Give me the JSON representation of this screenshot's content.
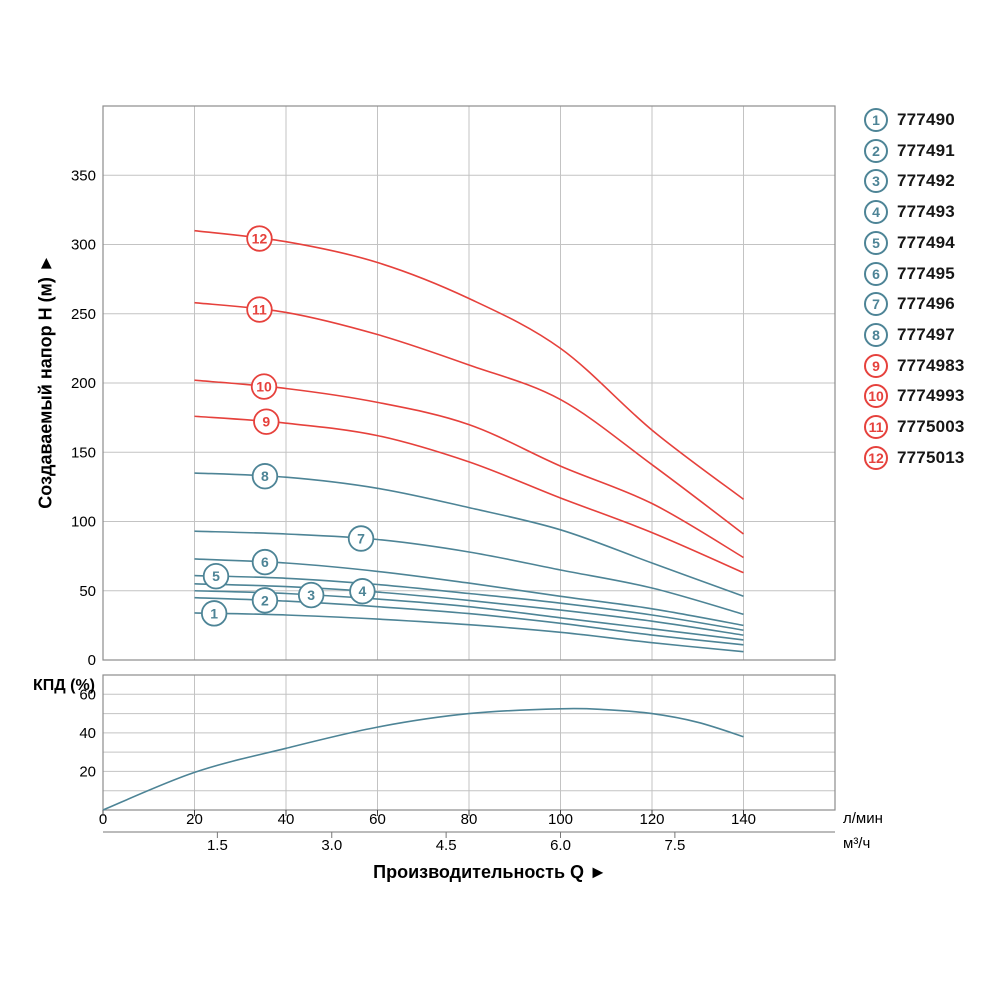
{
  "page": {
    "background": "#ffffff"
  },
  "colors": {
    "blue": "#4d8496",
    "red": "#e6413c",
    "grid": "#c3c3c3",
    "border": "#8d8d8d",
    "tick": "#444444",
    "text": "#000000"
  },
  "legend": {
    "items": [
      {
        "num": "1",
        "model": "777490",
        "color": "blue"
      },
      {
        "num": "2",
        "model": "777491",
        "color": "blue"
      },
      {
        "num": "3",
        "model": "777492",
        "color": "blue"
      },
      {
        "num": "4",
        "model": "777493",
        "color": "blue"
      },
      {
        "num": "5",
        "model": "777494",
        "color": "blue"
      },
      {
        "num": "6",
        "model": "777495",
        "color": "blue"
      },
      {
        "num": "7",
        "model": "777496",
        "color": "blue"
      },
      {
        "num": "8",
        "model": "777497",
        "color": "blue"
      },
      {
        "num": "9",
        "model": "7774983",
        "color": "red"
      },
      {
        "num": "10",
        "model": "7774993",
        "color": "red"
      },
      {
        "num": "11",
        "model": "7775003",
        "color": "red"
      },
      {
        "num": "12",
        "model": "7775013",
        "color": "red"
      }
    ]
  },
  "chart_data": {
    "type": "line",
    "title": "",
    "x_axis": {
      "label": "Производительность Q ►",
      "unit_primary": "л/мин",
      "unit_secondary": "м³/ч",
      "range_lmin": [
        0,
        160
      ],
      "ticks_lmin": [
        0,
        20,
        40,
        60,
        80,
        100,
        120,
        140
      ],
      "ticks_m3h": [
        {
          "label": "1.5",
          "q": 25
        },
        {
          "label": "3.0",
          "q": 50
        },
        {
          "label": "4.5",
          "q": 75
        },
        {
          "label": "6.0",
          "q": 100
        },
        {
          "label": "7.5",
          "q": 125
        }
      ],
      "grid_step": 20
    },
    "y_axis_main": {
      "label": "Создаваемый напор H (м) ►",
      "range": [
        0,
        400
      ],
      "ticks": [
        0,
        50,
        100,
        150,
        200,
        250,
        300,
        350
      ],
      "grid_step": 50
    },
    "y_axis_eff": {
      "label": "КПД (%)",
      "range": [
        0,
        70
      ],
      "ticks": [
        20,
        40,
        60
      ],
      "grid_step": 10
    },
    "series": [
      {
        "num": "1",
        "model": "777490",
        "color": "blue",
        "label_q": 24.3,
        "points": [
          [
            20,
            34
          ],
          [
            40,
            32.5
          ],
          [
            60,
            29.5
          ],
          [
            80,
            25.5
          ],
          [
            100,
            20
          ],
          [
            120,
            12.5
          ],
          [
            140,
            6
          ]
        ]
      },
      {
        "num": "2",
        "model": "777491",
        "color": "blue",
        "label_q": 35.4,
        "points": [
          [
            20,
            45
          ],
          [
            40,
            42.5
          ],
          [
            60,
            38.5
          ],
          [
            80,
            33.5
          ],
          [
            100,
            26.5
          ],
          [
            120,
            18
          ],
          [
            140,
            11
          ]
        ]
      },
      {
        "num": "3",
        "model": "777492",
        "color": "blue",
        "label_q": 45.5,
        "points": [
          [
            20,
            50
          ],
          [
            40,
            48
          ],
          [
            60,
            44
          ],
          [
            80,
            38.5
          ],
          [
            100,
            30.5
          ],
          [
            120,
            22.5
          ],
          [
            140,
            14.5
          ]
        ]
      },
      {
        "num": "4",
        "model": "777493",
        "color": "blue",
        "label_q": 56.7,
        "points": [
          [
            20,
            55
          ],
          [
            40,
            53
          ],
          [
            60,
            49
          ],
          [
            80,
            43
          ],
          [
            100,
            36
          ],
          [
            120,
            28
          ],
          [
            140,
            18
          ]
        ]
      },
      {
        "num": "5",
        "model": "777494",
        "color": "blue",
        "label_q": 24.7,
        "points": [
          [
            20,
            61
          ],
          [
            40,
            59
          ],
          [
            60,
            54.5
          ],
          [
            80,
            48
          ],
          [
            100,
            41
          ],
          [
            120,
            32.5
          ],
          [
            140,
            21.5
          ]
        ]
      },
      {
        "num": "6",
        "model": "777495",
        "color": "blue",
        "label_q": 35.4,
        "points": [
          [
            20,
            73
          ],
          [
            40,
            70
          ],
          [
            60,
            64
          ],
          [
            80,
            55.5
          ],
          [
            100,
            46
          ],
          [
            120,
            37
          ],
          [
            140,
            25
          ]
        ]
      },
      {
        "num": "7",
        "model": "777496",
        "color": "blue",
        "label_q": 56.4,
        "points": [
          [
            20,
            93
          ],
          [
            40,
            91
          ],
          [
            60,
            87
          ],
          [
            80,
            78
          ],
          [
            100,
            65
          ],
          [
            120,
            52
          ],
          [
            140,
            33
          ]
        ]
      },
      {
        "num": "8",
        "model": "777497",
        "color": "blue",
        "label_q": 35.4,
        "points": [
          [
            20,
            135
          ],
          [
            40,
            132
          ],
          [
            60,
            124
          ],
          [
            80,
            110
          ],
          [
            100,
            94
          ],
          [
            120,
            70
          ],
          [
            140,
            46
          ]
        ]
      },
      {
        "num": "9",
        "model": "7774983",
        "color": "red",
        "label_q": 35.7,
        "points": [
          [
            20,
            176
          ],
          [
            40,
            171
          ],
          [
            60,
            162
          ],
          [
            80,
            143
          ],
          [
            100,
            117
          ],
          [
            120,
            92
          ],
          [
            140,
            63
          ]
        ]
      },
      {
        "num": "10",
        "model": "7774993",
        "color": "red",
        "label_q": 35.2,
        "points": [
          [
            20,
            202
          ],
          [
            40,
            196
          ],
          [
            60,
            186
          ],
          [
            80,
            170
          ],
          [
            100,
            140
          ],
          [
            120,
            113
          ],
          [
            140,
            74
          ]
        ]
      },
      {
        "num": "11",
        "model": "7775003",
        "color": "red",
        "label_q": 34.2,
        "points": [
          [
            20,
            258
          ],
          [
            40,
            251
          ],
          [
            60,
            235
          ],
          [
            80,
            213
          ],
          [
            100,
            188
          ],
          [
            120,
            141
          ],
          [
            140,
            91
          ]
        ]
      },
      {
        "num": "12",
        "model": "7775013",
        "color": "red",
        "label_q": 34.2,
        "points": [
          [
            20,
            310
          ],
          [
            40,
            302
          ],
          [
            60,
            287
          ],
          [
            80,
            261
          ],
          [
            100,
            225
          ],
          [
            120,
            166
          ],
          [
            140,
            116
          ]
        ]
      }
    ],
    "efficiency": {
      "name": "КПД",
      "color": "blue",
      "points": [
        [
          0,
          0
        ],
        [
          20,
          19.5
        ],
        [
          40,
          32
        ],
        [
          60,
          43
        ],
        [
          80,
          50
        ],
        [
          100,
          52.5
        ],
        [
          110,
          52
        ],
        [
          120,
          50
        ],
        [
          130,
          45.5
        ],
        [
          140,
          38
        ]
      ]
    }
  }
}
